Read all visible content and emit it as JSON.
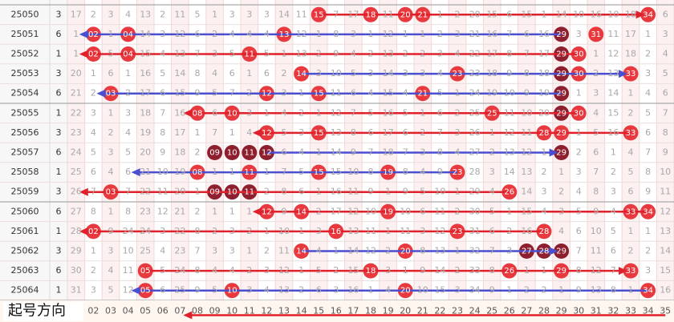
{
  "rows": [
    {
      "issue": "25050",
      "n": "3",
      "hits": [
        15,
        18,
        20,
        21,
        34
      ],
      "dark": [],
      "arrow": {
        "color": "red",
        "from": 15,
        "to": 34
      },
      "cells": [
        "17",
        "2",
        "3",
        "4",
        "13",
        "2",
        "11",
        "5",
        "1",
        "3",
        "3",
        "3",
        "14",
        "11",
        "15",
        "7",
        "17",
        "18",
        "11",
        "20",
        "21",
        "1",
        "2",
        "20",
        "15",
        "6",
        "15",
        "1",
        "14",
        "10",
        "16",
        "10",
        "18",
        "34",
        "6"
      ]
    },
    {
      "issue": "25051",
      "n": "6",
      "hits": [
        2,
        4,
        13,
        29,
        31
      ],
      "dark": [
        29
      ],
      "arrow": {
        "color": "blue",
        "from": 29,
        "to": 1
      },
      "cells": [
        "1",
        "02",
        "1",
        "04",
        "14",
        "3",
        "12",
        "6",
        "2",
        "4",
        "4",
        "4",
        "13",
        "12",
        "1",
        "8",
        "3",
        "1",
        "12",
        "1",
        "1",
        "2",
        "3",
        "21",
        "16",
        "7",
        "6",
        "16",
        "29",
        "3",
        "31",
        "11",
        "17",
        "1",
        "3"
      ]
    },
    {
      "issue": "25052",
      "n": "1",
      "hits": [
        2,
        4,
        11,
        29,
        30
      ],
      "dark": [
        29
      ],
      "arrow": {
        "color": "red",
        "from": 30,
        "to": 1
      },
      "cells": [
        "1",
        "02",
        "5",
        "04",
        "15",
        "4",
        "13",
        "7",
        "3",
        "5",
        "11",
        "5",
        "1",
        "13",
        "2",
        "9",
        "4",
        "2",
        "13",
        "2",
        "2",
        "3",
        "4",
        "22",
        "17",
        "8",
        "7",
        "17",
        "29",
        "30",
        "1",
        "12",
        "18",
        "2",
        "4"
      ]
    },
    {
      "issue": "25053",
      "n": "3",
      "hits": [
        14,
        23,
        29,
        30,
        33
      ],
      "dark": [
        29
      ],
      "arrow": {
        "color": "blue",
        "from": 14,
        "to": 33
      },
      "cells": [
        "20",
        "1",
        "6",
        "1",
        "16",
        "5",
        "14",
        "8",
        "4",
        "6",
        "1",
        "6",
        "2",
        "14",
        "3",
        "10",
        "5",
        "3",
        "14",
        "3",
        "3",
        "4",
        "23",
        "23",
        "18",
        "9",
        "8",
        "18",
        "29",
        "30",
        "2",
        "13",
        "33",
        "3",
        "5"
      ]
    },
    {
      "issue": "25054",
      "n": "6",
      "hits": [
        3,
        12,
        15,
        21,
        29
      ],
      "dark": [
        29
      ],
      "arrow": {
        "color": "blue",
        "from": 29,
        "to": 2
      },
      "cells": [
        "21",
        "2",
        "03",
        "2",
        "17",
        "6",
        "15",
        "9",
        "5",
        "7",
        "2",
        "12",
        "3",
        "1",
        "15",
        "11",
        "6",
        "4",
        "15",
        "4",
        "21",
        "5",
        "1",
        "24",
        "19",
        "10",
        "9",
        "19",
        "29",
        "1",
        "3",
        "14",
        "1",
        "4",
        "6"
      ]
    },
    {
      "issue": "25055",
      "n": "1",
      "hits": [
        8,
        10,
        25,
        29,
        30
      ],
      "dark": [
        29
      ],
      "arrow": {
        "color": "red",
        "from": 30,
        "to": 7
      },
      "cells": [
        "22",
        "3",
        "1",
        "3",
        "18",
        "7",
        "16",
        "08",
        "6",
        "10",
        "3",
        "1",
        "4",
        "2",
        "1",
        "12",
        "7",
        "5",
        "16",
        "5",
        "1",
        "6",
        "2",
        "25",
        "25",
        "11",
        "10",
        "20",
        "29",
        "30",
        "4",
        "15",
        "2",
        "5",
        "7"
      ]
    },
    {
      "issue": "25056",
      "n": "3",
      "hits": [
        12,
        15,
        28,
        29,
        33
      ],
      "dark": [],
      "arrow": {
        "color": "red",
        "from": 33,
        "to": 11
      },
      "cells": [
        "23",
        "4",
        "2",
        "4",
        "19",
        "8",
        "17",
        "1",
        "7",
        "1",
        "4",
        "12",
        "5",
        "3",
        "15",
        "13",
        "8",
        "6",
        "17",
        "6",
        "2",
        "7",
        "3",
        "26",
        "1",
        "12",
        "11",
        "28",
        "29",
        "1",
        "5",
        "16",
        "33",
        "6",
        "8"
      ]
    },
    {
      "issue": "25057",
      "n": "6",
      "hits": [
        9,
        10,
        11,
        12,
        29
      ],
      "dark": [
        9,
        10,
        11,
        12,
        29
      ],
      "arrow": {
        "color": "blue",
        "from": 12,
        "to": 29
      },
      "cells": [
        "24",
        "5",
        "3",
        "5",
        "20",
        "9",
        "18",
        "2",
        "09",
        "10",
        "11",
        "12",
        "6",
        "4",
        "1",
        "14",
        "9",
        "7",
        "18",
        "7",
        "3",
        "8",
        "4",
        "27",
        "2",
        "13",
        "12",
        "1",
        "29",
        "2",
        "6",
        "1",
        "4",
        "7",
        "9"
      ]
    },
    {
      "issue": "25058",
      "n": "1",
      "hits": [
        8,
        11,
        15,
        19,
        23
      ],
      "dark": [],
      "arrow": {
        "color": "blue",
        "from": 23,
        "to": 4
      },
      "cells": [
        "25",
        "6",
        "4",
        "6",
        "21",
        "10",
        "19",
        "08",
        "1",
        "1",
        "11",
        "1",
        "7",
        "5",
        "15",
        "15",
        "10",
        "8",
        "19",
        "8",
        "4",
        "9",
        "23",
        "28",
        "3",
        "14",
        "13",
        "2",
        "1",
        "3",
        "7",
        "2",
        "5",
        "8",
        "10"
      ]
    },
    {
      "issue": "25059",
      "n": "3",
      "hits": [
        3,
        9,
        10,
        11,
        26
      ],
      "dark": [
        9,
        10,
        11
      ],
      "arrow": {
        "color": "red",
        "from": 26,
        "to": 1
      },
      "cells": [
        "26",
        "7",
        "03",
        "7",
        "22",
        "11",
        "20",
        "1",
        "09",
        "10",
        "11",
        "2",
        "8",
        "6",
        "1",
        "16",
        "11",
        "9",
        "1",
        "9",
        "5",
        "10",
        "1",
        "29",
        "4",
        "26",
        "14",
        "3",
        "2",
        "4",
        "8",
        "3",
        "6",
        "9",
        "11"
      ]
    },
    {
      "issue": "25060",
      "n": "6",
      "hits": [
        12,
        14,
        19,
        33,
        34
      ],
      "dark": [],
      "arrow": {
        "color": "red",
        "from": 34,
        "to": 11
      },
      "cells": [
        "27",
        "8",
        "1",
        "8",
        "23",
        "12",
        "21",
        "2",
        "1",
        "1",
        "1",
        "12",
        "9",
        "14",
        "2",
        "17",
        "12",
        "10",
        "19",
        "10",
        "6",
        "11",
        "2",
        "30",
        "5",
        "1",
        "15",
        "4",
        "3",
        "5",
        "9",
        "4",
        "33",
        "34",
        "12"
      ]
    },
    {
      "issue": "25061",
      "n": "1",
      "hits": [
        2,
        16,
        23,
        28
      ],
      "dark": [],
      "arrow": {
        "color": "red",
        "from": 28,
        "to": 1
      },
      "cells": [
        "28",
        "02",
        "9",
        "24",
        "24",
        "3",
        "22",
        "8",
        "2",
        "3",
        "2",
        "1",
        "10",
        "1",
        "3",
        "16",
        "13",
        "11",
        "1",
        "11",
        "3",
        "12",
        "23",
        "31",
        "6",
        "2",
        "16",
        "28",
        "4",
        "6",
        "10",
        "5",
        "1",
        "1",
        "13"
      ]
    },
    {
      "issue": "25062",
      "n": "3",
      "hits": [
        14,
        20,
        27,
        28,
        29
      ],
      "dark": [
        27,
        28,
        29
      ],
      "arrow": {
        "color": "blue",
        "from": 14,
        "to": 29
      },
      "cells": [
        "29",
        "1",
        "3",
        "10",
        "25",
        "4",
        "23",
        "7",
        "3",
        "3",
        "1",
        "2",
        "11",
        "14",
        "4",
        "1",
        "14",
        "12",
        "2",
        "20",
        "8",
        "13",
        "1",
        "32",
        "7",
        "3",
        "27",
        "28",
        "29",
        "7",
        "11",
        "6",
        "2",
        "2",
        "14"
      ]
    },
    {
      "issue": "25063",
      "n": "6",
      "hits": [
        5,
        18,
        26,
        29,
        33
      ],
      "dark": [],
      "arrow": {
        "color": "red",
        "from": 5,
        "to": 33
      },
      "cells": [
        "30",
        "2",
        "4",
        "11",
        "05",
        "5",
        "24",
        "8",
        "4",
        "4",
        "2",
        "3",
        "12",
        "1",
        "5",
        "2",
        "15",
        "18",
        "3",
        "1",
        "9",
        "14",
        "2",
        "33",
        "8",
        "26",
        "1",
        "1",
        "29",
        "8",
        "12",
        "7",
        "33",
        "3",
        "15"
      ]
    },
    {
      "issue": "25064",
      "n": "1",
      "hits": [
        5,
        10,
        20,
        34
      ],
      "dark": [],
      "arrow": {
        "color": "blue",
        "from": 34,
        "to": 4
      },
      "cells": [
        "31",
        "3",
        "5",
        "12",
        "05",
        "6",
        "25",
        "9",
        "5",
        "10",
        "3",
        "4",
        "13",
        "2",
        "6",
        "3",
        "16",
        "1",
        "4",
        "20",
        "10",
        "15",
        "3",
        "34",
        "9",
        "1",
        "2",
        "2",
        "1",
        "9",
        "13",
        "8",
        "1",
        "34",
        "16"
      ]
    }
  ],
  "footer": {
    "label": "起号方向",
    "numbers": [
      "02",
      "03",
      "04",
      "05",
      "06",
      "07",
      "08",
      "09",
      "10",
      "11",
      "12",
      "13",
      "14",
      "15",
      "16",
      "17",
      "18",
      "19",
      "20",
      "21",
      "22",
      "23",
      "24",
      "25",
      "26",
      "27",
      "28",
      "29",
      "30",
      "31",
      "32",
      "33",
      "34",
      "35"
    ],
    "arrow": {
      "color": "red",
      "from": 35,
      "to": 7
    }
  }
}
